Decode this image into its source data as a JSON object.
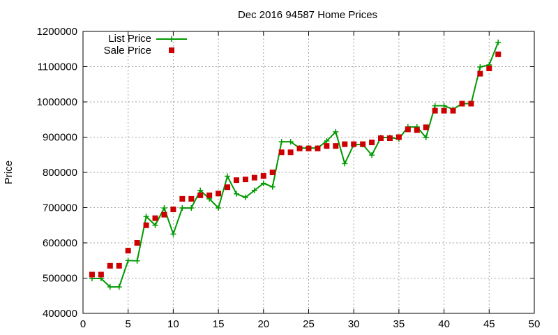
{
  "chart_data": {
    "type": "line",
    "title": "Dec 2016 94587 Home Prices",
    "xlabel": "",
    "ylabel": "Price",
    "xlim": [
      0,
      50
    ],
    "ylim": [
      400000,
      1200000
    ],
    "xticks": [
      0,
      5,
      10,
      15,
      20,
      25,
      30,
      35,
      40,
      45,
      50
    ],
    "yticks": [
      400000,
      500000,
      600000,
      700000,
      800000,
      900000,
      1000000,
      1100000,
      1200000
    ],
    "grid": true,
    "legend_position": "top-left",
    "x": [
      1,
      2,
      3,
      4,
      5,
      6,
      7,
      8,
      9,
      10,
      11,
      12,
      13,
      14,
      15,
      16,
      17,
      18,
      19,
      20,
      21,
      22,
      23,
      24,
      25,
      26,
      27,
      28,
      29,
      30,
      31,
      32,
      33,
      34,
      35,
      36,
      37,
      38,
      39,
      40,
      41,
      42,
      43,
      44,
      45,
      46
    ],
    "series": [
      {
        "name": "List Price",
        "style": "line-plus",
        "color": "#009900",
        "values": [
          499000,
          499000,
          475000,
          475000,
          550000,
          549000,
          675000,
          650000,
          699000,
          625000,
          699000,
          699000,
          749000,
          725000,
          699000,
          789000,
          739000,
          729000,
          749000,
          769000,
          759000,
          887000,
          887000,
          869000,
          869000,
          869000,
          889000,
          915000,
          825000,
          879000,
          879000,
          849000,
          899000,
          899000,
          895000,
          929000,
          929000,
          899000,
          989000,
          989000,
          979000,
          995000,
          995000,
          1099000,
          1105000,
          1169000
        ]
      },
      {
        "name": "Sale Price",
        "style": "points-square",
        "color": "#cc0000",
        "values": [
          510000,
          510000,
          535000,
          535000,
          578000,
          600000,
          650000,
          670000,
          680000,
          695000,
          725000,
          725000,
          735000,
          735000,
          740000,
          758000,
          778000,
          780000,
          785000,
          790000,
          800000,
          857000,
          857000,
          868000,
          868000,
          868000,
          875000,
          875000,
          880000,
          880000,
          880000,
          885000,
          897000,
          897000,
          900000,
          922000,
          920000,
          928000,
          975000,
          975000,
          975000,
          995000,
          995000,
          1080000,
          1095000,
          1135000
        ]
      }
    ]
  }
}
